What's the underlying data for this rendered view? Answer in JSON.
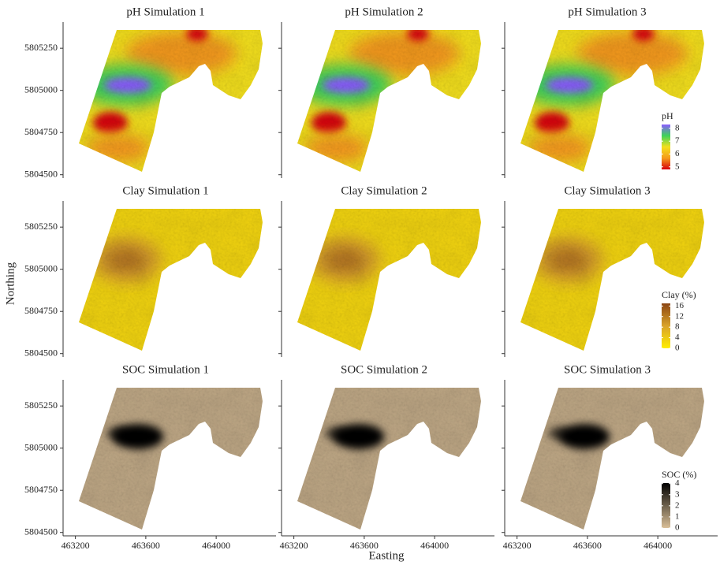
{
  "chart_data": {
    "type": "raster-map",
    "x_label": "Easting",
    "y_label": "Northing",
    "xlim": [
      463130,
      464340
    ],
    "xticks": [
      463200,
      463600,
      464000
    ],
    "ylim": [
      5804480,
      5805405
    ],
    "yticks": [
      5804500,
      5804750,
      5805000,
      5805250
    ],
    "rows": [
      {
        "titles": [
          "pH Simulation 1",
          "pH Simulation 2",
          "pH Simulation 3"
        ],
        "legend": {
          "title": "pH",
          "lim": [
            4.8,
            8.3
          ],
          "ticks": [
            5,
            6,
            7,
            8
          ],
          "colors": [
            "#d7000f",
            "#f59a1c",
            "#f3e01c",
            "#3ed25a",
            "#8a5bff"
          ]
        }
      },
      {
        "titles": [
          "Clay Simulation 1",
          "Clay Simulation 2",
          "Clay Simulation 3"
        ],
        "legend": {
          "title": "Clay (%)",
          "lim": [
            0,
            17
          ],
          "ticks": [
            0,
            4,
            8,
            12,
            16
          ],
          "colors": [
            "#ffee00",
            "#d9a22a",
            "#8b4513"
          ]
        }
      },
      {
        "titles": [
          "SOC Simulation 1",
          "SOC Simulation 2",
          "SOC Simulation 3"
        ],
        "legend": {
          "title": "SOC (%)",
          "lim": [
            0,
            4.05
          ],
          "ticks": [
            0,
            1,
            2,
            3,
            4
          ],
          "colors": [
            "#d9bf98",
            "#000000"
          ]
        }
      }
    ]
  }
}
